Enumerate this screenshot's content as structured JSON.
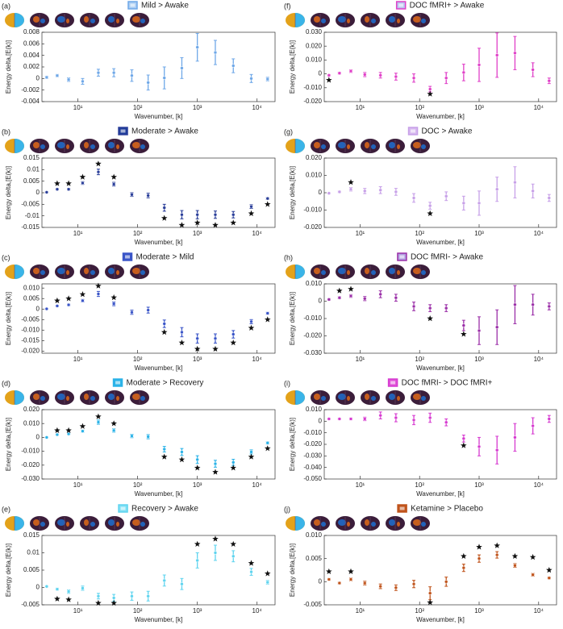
{
  "chart_data": [
    {
      "type": "errorbar",
      "label": "(a)",
      "title": "Mild  >  Awake",
      "xlabel": "Wavenumber, [k]",
      "ylabel": "Energy delta,[E(k)]",
      "color": "#6fa8e8",
      "legend_fill": "#a9ccf3",
      "xscale": "log",
      "xlim": [
        2.5,
        20000
      ],
      "xticks": [
        {
          "value": 10,
          "label": "10¹"
        },
        {
          "value": 100,
          "label": "10²"
        },
        {
          "value": 1000,
          "label": "10³"
        },
        {
          "value": 10000,
          "label": "10⁴"
        }
      ],
      "ylim": [
        -0.004,
        0.008
      ],
      "yticks": [
        -0.004,
        -0.002,
        0,
        0.002,
        0.004,
        0.006,
        0.008
      ],
      "x": [
        3,
        4.5,
        7,
        12,
        22,
        40,
        80,
        150,
        280,
        550,
        1000,
        2000,
        4000,
        8000,
        15000
      ],
      "values": [
        0.0002,
        0.0005,
        -0.0002,
        -0.0005,
        0.001,
        0.001,
        0.0005,
        -0.0007,
        0.0001,
        0.0018,
        0.0054,
        0.0045,
        0.0022,
        0,
        -0.0001
      ],
      "errors": [
        0.0002,
        0.0002,
        0.0003,
        0.0005,
        0.0006,
        0.0007,
        0.001,
        0.0013,
        0.0019,
        0.0018,
        0.0024,
        0.0021,
        0.0012,
        0.0007,
        0.0003
      ],
      "star_y": [
        null,
        null,
        null,
        null,
        null,
        null,
        null,
        null,
        null,
        null,
        null,
        null,
        null,
        null,
        null
      ]
    },
    {
      "type": "errorbar",
      "label": "(b)",
      "title": "Moderate  >  Awake",
      "xlabel": "Wavenumber, [k]",
      "ylabel": "Energy delta,[E(k)]",
      "color": "#2b3f9a",
      "legend_fill": "#1e3c9a",
      "xscale": "log",
      "xlim": [
        2.5,
        20000
      ],
      "xticks": [
        {
          "value": 10,
          "label": "10¹"
        },
        {
          "value": 100,
          "label": "10²"
        },
        {
          "value": 1000,
          "label": "10³"
        },
        {
          "value": 10000,
          "label": "10⁴"
        }
      ],
      "ylim": [
        -0.015,
        0.015
      ],
      "yticks": [
        -0.015,
        -0.01,
        -0.005,
        0,
        0.005,
        0.01,
        0.015
      ],
      "x": [
        3,
        4.5,
        7,
        12,
        22,
        40,
        80,
        150,
        280,
        550,
        1000,
        2000,
        4000,
        8000,
        15000
      ],
      "values": [
        0.0002,
        0.0015,
        0.0015,
        0.0042,
        0.009,
        0.0037,
        -0.0008,
        -0.0012,
        -0.0065,
        -0.0095,
        -0.0095,
        -0.0095,
        -0.0095,
        -0.006,
        -0.0025
      ],
      "errors": [
        0.0002,
        0.0003,
        0.0004,
        0.0006,
        0.0012,
        0.0008,
        0.0008,
        0.001,
        0.0015,
        0.0018,
        0.0018,
        0.0016,
        0.0014,
        0.0008,
        0.0004
      ],
      "star_y": [
        null,
        0.004,
        0.004,
        0.0068,
        0.0125,
        0.0068,
        null,
        null,
        -0.011,
        -0.014,
        -0.013,
        -0.014,
        -0.013,
        -0.009,
        -0.005
      ]
    },
    {
      "type": "errorbar",
      "label": "(c)",
      "title": "Moderate  >  Mild",
      "xlabel": "Wavenumber, [k]",
      "ylabel": "Energy delta,[E(k)]",
      "color": "#3a55c8",
      "legend_fill": "#3a55c8",
      "xscale": "log",
      "xlim": [
        2.5,
        20000
      ],
      "xticks": [
        {
          "value": 10,
          "label": "10¹"
        },
        {
          "value": 100,
          "label": "10²"
        },
        {
          "value": 1000,
          "label": "10³"
        },
        {
          "value": 10000,
          "label": "10⁴"
        }
      ],
      "ylim": [
        -0.021,
        0.012
      ],
      "yticks": [
        {
          "value": -0.02,
          "label": "-0.020"
        },
        -0.015,
        {
          "value": -0.01,
          "label": "-0.010"
        },
        -0.005,
        0,
        0.005,
        {
          "value": 0.01,
          "label": "0.010"
        }
      ],
      "x": [
        3,
        4.5,
        7,
        12,
        22,
        40,
        80,
        150,
        280,
        550,
        1000,
        2000,
        4000,
        8000,
        15000
      ],
      "values": [
        0.0001,
        0.0015,
        0.002,
        0.004,
        0.0072,
        0.0025,
        -0.0015,
        -0.0005,
        -0.007,
        -0.011,
        -0.014,
        -0.014,
        -0.012,
        -0.006,
        -0.002
      ],
      "errors": [
        0.0002,
        0.0003,
        0.0004,
        0.0006,
        0.0012,
        0.0009,
        0.001,
        0.0014,
        0.0018,
        0.0022,
        0.0022,
        0.0022,
        0.0018,
        0.001,
        0.0005
      ],
      "star_y": [
        null,
        0.004,
        0.005,
        0.007,
        0.011,
        0.0055,
        null,
        null,
        -0.011,
        -0.016,
        -0.019,
        -0.019,
        -0.016,
        -0.009,
        -0.005
      ]
    },
    {
      "type": "errorbar",
      "label": "(d)",
      "title": "Moderate  >  Recovery",
      "xlabel": "Wavenumber, [k]",
      "ylabel": "Energy delta,[E(k)]",
      "color": "#2bb3e8",
      "legend_fill": "#2bb3e8",
      "xscale": "log",
      "xlim": [
        2.5,
        20000
      ],
      "xticks": [
        {
          "value": 10,
          "label": "10¹"
        },
        {
          "value": 100,
          "label": "10²"
        },
        {
          "value": 1000,
          "label": "10³"
        },
        {
          "value": 10000,
          "label": "10⁴"
        }
      ],
      "ylim": [
        -0.03,
        0.02
      ],
      "yticks": [
        {
          "value": -0.03,
          "label": "-0.030"
        },
        {
          "value": -0.02,
          "label": "-0.020"
        },
        {
          "value": -0.01,
          "label": "-0.010"
        },
        0,
        {
          "value": 0.01,
          "label": "0.010"
        },
        {
          "value": 0.02,
          "label": "0.020"
        }
      ],
      "x": [
        3,
        4.5,
        7,
        12,
        22,
        40,
        80,
        150,
        280,
        550,
        1000,
        2000,
        4000,
        8000,
        15000
      ],
      "values": [
        0,
        0.002,
        0.0025,
        0.0045,
        0.011,
        0.005,
        0.001,
        0.0005,
        -0.0085,
        -0.0105,
        -0.016,
        -0.019,
        -0.018,
        -0.0105,
        -0.004
      ],
      "errors": [
        0.0003,
        0.0004,
        0.0005,
        0.0008,
        0.0015,
        0.0012,
        0.0012,
        0.0015,
        0.002,
        0.0025,
        0.0028,
        0.0025,
        0.0022,
        0.0015,
        0.0008
      ],
      "star_y": [
        null,
        0.005,
        0.005,
        0.008,
        0.015,
        0.01,
        null,
        null,
        -0.014,
        -0.016,
        -0.022,
        -0.025,
        -0.022,
        -0.014,
        -0.008
      ]
    },
    {
      "type": "errorbar",
      "label": "(e)",
      "title": "Recovery  >  Awake",
      "xlabel": "Wavenumber, [k]",
      "ylabel": "Energy delta,[E(k)]",
      "color": "#5fd4ef",
      "legend_fill": "#7fe0f5",
      "xscale": "log",
      "xlim": [
        2.5,
        20000
      ],
      "xticks": [
        {
          "value": 10,
          "label": "10¹"
        },
        {
          "value": 100,
          "label": "10²"
        },
        {
          "value": 1000,
          "label": "10³"
        },
        {
          "value": 10000,
          "label": "10⁴"
        }
      ],
      "ylim": [
        -0.005,
        0.015
      ],
      "yticks": [
        -0.005,
        0,
        0.005,
        0.01,
        0.015
      ],
      "x": [
        3,
        4.5,
        7,
        12,
        22,
        40,
        80,
        150,
        280,
        550,
        1000,
        2000,
        4000,
        8000,
        15000
      ],
      "values": [
        0.0003,
        -0.0005,
        -0.0012,
        -0.0002,
        -0.0025,
        -0.003,
        -0.0025,
        -0.0025,
        0.002,
        0.001,
        0.0078,
        0.01,
        0.009,
        0.0045,
        0.0015
      ],
      "errors": [
        0.0002,
        0.0003,
        0.0005,
        0.0006,
        0.0008,
        0.001,
        0.0012,
        0.0014,
        0.0016,
        0.0016,
        0.0022,
        0.0022,
        0.0016,
        0.001,
        0.0005
      ],
      "star_y": [
        null,
        -0.0033,
        -0.0035,
        null,
        -0.0045,
        -0.0045,
        null,
        null,
        null,
        null,
        0.0125,
        0.014,
        0.0125,
        0.007,
        0.004
      ]
    },
    {
      "type": "errorbar",
      "label": "(f)",
      "title": "DOC fMRI+  >  Awake",
      "xlabel": "Wavenumber, [k]",
      "ylabel": "Energy delta,[E(k)]",
      "color": "#e040c8",
      "legend_fill": "#b8c4f0",
      "xscale": "log",
      "xlim": [
        2.5,
        20000
      ],
      "xticks": [
        {
          "value": 10,
          "label": "10¹"
        },
        {
          "value": 100,
          "label": "10²"
        },
        {
          "value": 1000,
          "label": "10³"
        },
        {
          "value": 10000,
          "label": "10⁴"
        }
      ],
      "ylim": [
        -0.02,
        0.03
      ],
      "yticks": [
        {
          "value": -0.02,
          "label": "-0.020"
        },
        {
          "value": -0.01,
          "label": "-0.010"
        },
        0,
        {
          "value": 0.01,
          "label": "0.010"
        },
        {
          "value": 0.02,
          "label": "0.020"
        },
        {
          "value": 0.03,
          "label": "0.030"
        }
      ],
      "x": [
        3,
        4.5,
        7,
        12,
        22,
        40,
        80,
        150,
        280,
        550,
        1000,
        2000,
        4000,
        8000,
        15000
      ],
      "values": [
        -0.001,
        0.0005,
        0.002,
        -0.0005,
        -0.001,
        -0.002,
        -0.003,
        -0.011,
        -0.003,
        0.001,
        0.0065,
        0.0135,
        0.015,
        0.003,
        -0.005
      ],
      "errors": [
        0.0005,
        0.0007,
        0.001,
        0.0015,
        0.002,
        0.0025,
        0.003,
        0.002,
        0.004,
        0.006,
        0.012,
        0.016,
        0.012,
        0.005,
        0.002
      ],
      "star_y": [
        -0.0045,
        null,
        null,
        null,
        null,
        null,
        null,
        -0.0145,
        null,
        null,
        null,
        null,
        null,
        null,
        null
      ]
    },
    {
      "type": "errorbar",
      "label": "(g)",
      "title": "DOC > Awake",
      "xlabel": "Wavenumber, [k]",
      "ylabel": "Energy delta,[E(k)]",
      "color": "#c7a0e8",
      "legend_fill": "#d7b8f0",
      "xscale": "log",
      "xlim": [
        2.5,
        20000
      ],
      "xticks": [
        {
          "value": 10,
          "label": "10¹"
        },
        {
          "value": 100,
          "label": "10²"
        },
        {
          "value": 1000,
          "label": "10³"
        },
        {
          "value": 10000,
          "label": "10⁴"
        }
      ],
      "ylim": [
        -0.02,
        0.02
      ],
      "yticks": [
        {
          "value": -0.02,
          "label": "-0.020"
        },
        {
          "value": -0.01,
          "label": "-0.010"
        },
        0,
        {
          "value": 0.01,
          "label": "0.010"
        },
        {
          "value": 0.02,
          "label": "0.020"
        }
      ],
      "x": [
        3,
        4.5,
        7,
        12,
        22,
        40,
        80,
        150,
        280,
        550,
        1000,
        2000,
        4000,
        8000,
        15000
      ],
      "values": [
        -0.0003,
        0.0005,
        0.002,
        0.001,
        0.0015,
        0.0005,
        -0.003,
        -0.0075,
        -0.002,
        -0.006,
        -0.006,
        0.002,
        0.006,
        0.001,
        -0.003
      ],
      "errors": [
        0.0003,
        0.0005,
        0.001,
        0.0015,
        0.002,
        0.002,
        0.0025,
        0.002,
        0.0025,
        0.004,
        0.007,
        0.007,
        0.009,
        0.004,
        0.002
      ],
      "star_y": [
        null,
        null,
        0.006,
        null,
        null,
        null,
        null,
        -0.012,
        null,
        null,
        null,
        null,
        null,
        null,
        null
      ]
    },
    {
      "type": "errorbar",
      "label": "(h)",
      "title": "DOC fMRI-  >  Awake",
      "xlabel": "Wavenumber, [k]",
      "ylabel": "Energy delta,[E(k)]",
      "color": "#9b2fa8",
      "legend_fill": "#b0a0e0",
      "xscale": "log",
      "xlim": [
        2.5,
        20000
      ],
      "xticks": [
        {
          "value": 10,
          "label": "10¹"
        },
        {
          "value": 100,
          "label": "10²"
        },
        {
          "value": 1000,
          "label": "10³"
        },
        {
          "value": 10000,
          "label": "10⁴"
        }
      ],
      "ylim": [
        -0.03,
        0.01
      ],
      "yticks": [
        {
          "value": -0.03,
          "label": "-0.030"
        },
        {
          "value": -0.02,
          "label": "-0.020"
        },
        {
          "value": -0.01,
          "label": "-0.010"
        },
        0,
        {
          "value": 0.01,
          "label": "0.010"
        }
      ],
      "x": [
        3,
        4.5,
        7,
        12,
        22,
        40,
        80,
        150,
        280,
        550,
        1000,
        2000,
        4000,
        8000,
        15000
      ],
      "values": [
        0.001,
        0.002,
        0.003,
        0.0015,
        0.004,
        0.002,
        -0.003,
        -0.004,
        -0.004,
        -0.014,
        -0.017,
        -0.015,
        -0.002,
        -0.002,
        -0.003
      ],
      "errors": [
        0.0005,
        0.0006,
        0.0008,
        0.0012,
        0.002,
        0.002,
        0.0025,
        0.002,
        0.002,
        0.003,
        0.008,
        0.01,
        0.011,
        0.006,
        0.002
      ],
      "star_y": [
        null,
        0.006,
        0.007,
        null,
        null,
        null,
        null,
        -0.01,
        null,
        -0.019,
        null,
        null,
        null,
        null,
        null
      ]
    },
    {
      "type": "errorbar",
      "label": "(i)",
      "title": "DOC fMRI-  >  DOC fMRI+",
      "xlabel": "Wavenumber, [k]",
      "ylabel": "Energy delta,[E(k)]",
      "color": "#d63ad0",
      "legend_fill": "#e050d8",
      "xscale": "log",
      "xlim": [
        2.5,
        20000
      ],
      "xticks": [
        {
          "value": 10,
          "label": "10¹"
        },
        {
          "value": 100,
          "label": "10²"
        },
        {
          "value": 1000,
          "label": "10³"
        },
        {
          "value": 10000,
          "label": "10⁴"
        }
      ],
      "ylim": [
        -0.05,
        0.01
      ],
      "yticks": [
        {
          "value": -0.05,
          "label": "-0.050"
        },
        {
          "value": -0.04,
          "label": "-0.040"
        },
        {
          "value": -0.03,
          "label": "-0.030"
        },
        {
          "value": -0.02,
          "label": "-0.020"
        },
        {
          "value": -0.01,
          "label": "-0.010"
        },
        0,
        {
          "value": 0.01,
          "label": "0.010"
        }
      ],
      "x": [
        3,
        4.5,
        7,
        12,
        22,
        40,
        80,
        150,
        280,
        550,
        1000,
        2000,
        4000,
        8000,
        15000
      ],
      "values": [
        0.002,
        0.002,
        0.002,
        0.002,
        0.005,
        0.003,
        0.001,
        0.003,
        -0.001,
        -0.015,
        -0.022,
        -0.025,
        -0.014,
        -0.004,
        0.002
      ],
      "errors": [
        0.0005,
        0.0006,
        0.0008,
        0.0015,
        0.003,
        0.0035,
        0.004,
        0.004,
        0.003,
        0.003,
        0.008,
        0.012,
        0.012,
        0.007,
        0.003
      ],
      "star_y": [
        null,
        null,
        null,
        null,
        null,
        null,
        null,
        null,
        null,
        -0.021,
        null,
        null,
        null,
        null,
        null
      ]
    },
    {
      "type": "errorbar",
      "label": "(j)",
      "title": "Ketamine > Placebo",
      "xlabel": "Wavenumber, [k]",
      "ylabel": "Energy delta,[E(k)]",
      "color": "#c0541c",
      "legend_fill": "#c0541c",
      "xscale": "log",
      "xlim": [
        2.5,
        20000
      ],
      "xticks": [
        {
          "value": 10,
          "label": "10¹"
        },
        {
          "value": 100,
          "label": "10²"
        },
        {
          "value": 1000,
          "label": "10³"
        },
        {
          "value": 10000,
          "label": "10⁴"
        }
      ],
      "ylim": [
        -0.005,
        0.01
      ],
      "yticks": [
        -0.005,
        0,
        0.005,
        {
          "value": 0.01,
          "label": "0.010"
        }
      ],
      "x": [
        3,
        4.5,
        7,
        12,
        22,
        40,
        80,
        150,
        280,
        550,
        1000,
        2000,
        4000,
        8000,
        15000
      ],
      "values": [
        0.0005,
        -0.0003,
        0.0005,
        -0.0003,
        -0.001,
        -0.0013,
        -0.0005,
        -0.0025,
        0,
        0.003,
        0.005,
        0.0058,
        0.0035,
        0.0015,
        0.0008
      ],
      "errors": [
        0.0002,
        0.0002,
        0.0003,
        0.0004,
        0.0005,
        0.0006,
        0.0008,
        0.0014,
        0.001,
        0.0008,
        0.0008,
        0.0007,
        0.0004,
        0.0003,
        0.0002
      ],
      "star_y": [
        0.0022,
        null,
        0.0022,
        null,
        null,
        null,
        null,
        -0.0045,
        null,
        0.0055,
        0.0075,
        0.0078,
        0.0055,
        0.0053,
        0.0025
      ]
    }
  ]
}
